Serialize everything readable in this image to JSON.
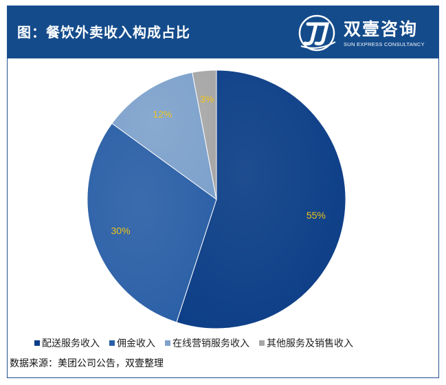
{
  "header": {
    "title": "图：餐饮外卖收入构成占比",
    "brand_name": "双壹咨询",
    "brand_sub": "SUN EXPRESS CONSULTANCY"
  },
  "chart_data": {
    "type": "pie",
    "categories": [
      "配送服务收入",
      "佣金收入",
      "在线营销服务收入",
      "其他服务及销售收入"
    ],
    "values": [
      55,
      30,
      12,
      3
    ],
    "labels": [
      "55%",
      "30%",
      "12%",
      "3%"
    ],
    "colors": [
      "#0b3d86",
      "#2a5fa6",
      "#7ea2cc",
      "#a6a6a6"
    ],
    "label_color": "#f0c419",
    "legend_position": "bottom"
  },
  "source": "数据来源：美团公司公告，双壹整理"
}
